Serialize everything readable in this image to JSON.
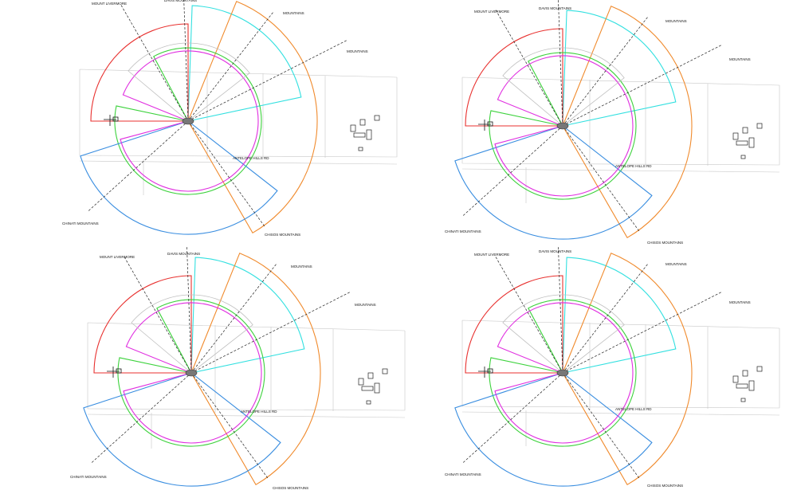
{
  "panels": [
    {
      "labels": {
        "mount_livermore": "MOUNT LIVERMORE",
        "davis": "DAVIS MOUNTAINS",
        "mountains_1": "MOUNTAINS",
        "mountains_2": "MOUNTAINS",
        "chinati": "CHINATI MOUNTAINS",
        "chisos": "CHISOS MOUNTAINS",
        "road": "ANTELOPE HILLS RD"
      }
    },
    {
      "labels": {
        "mount_livermore": "MOUNT LIVERMORE",
        "davis": "DAVIS MOUNTAINS",
        "mountains_1": "MOUNTAINS",
        "mountains_2": "MOUNTAINS",
        "chinati": "CHINATI MOUNTAINS",
        "chisos": "CHISOS MOUNTAINS",
        "road": "ANTELOPE HILLS RD"
      }
    },
    {
      "labels": {
        "mount_livermore": "MOUNT LIVERMORE",
        "davis": "DAVIS MOUNTAINS",
        "mountains_1": "MOUNTAINS",
        "mountains_2": "MOUNTAINS",
        "chinati": "CHINATI MOUNTAINS",
        "chisos": "CHISOS MOUNTAINS",
        "road": "ANTELOPE HILLS RD"
      }
    },
    {
      "labels": {
        "mount_livermore": "MOUNT LIVERMORE",
        "davis": "DAVIS MOUNTAINS",
        "mountains_1": "MOUNTAINS",
        "mountains_2": "MOUNTAINS",
        "chinati": "CHINATI MOUNTAINS",
        "chisos": "CHISOS MOUNTAINS",
        "road": "ANTELOPE HILLS RD"
      }
    }
  ],
  "colors": {
    "red": "#e8312f",
    "green": "#3cd23c",
    "cyan": "#33e0e0",
    "orange": "#f08a2c",
    "blue": "#3a8ee0",
    "magenta": "#e02ee0",
    "gray": "#bfbfbf",
    "line": "#222222"
  }
}
